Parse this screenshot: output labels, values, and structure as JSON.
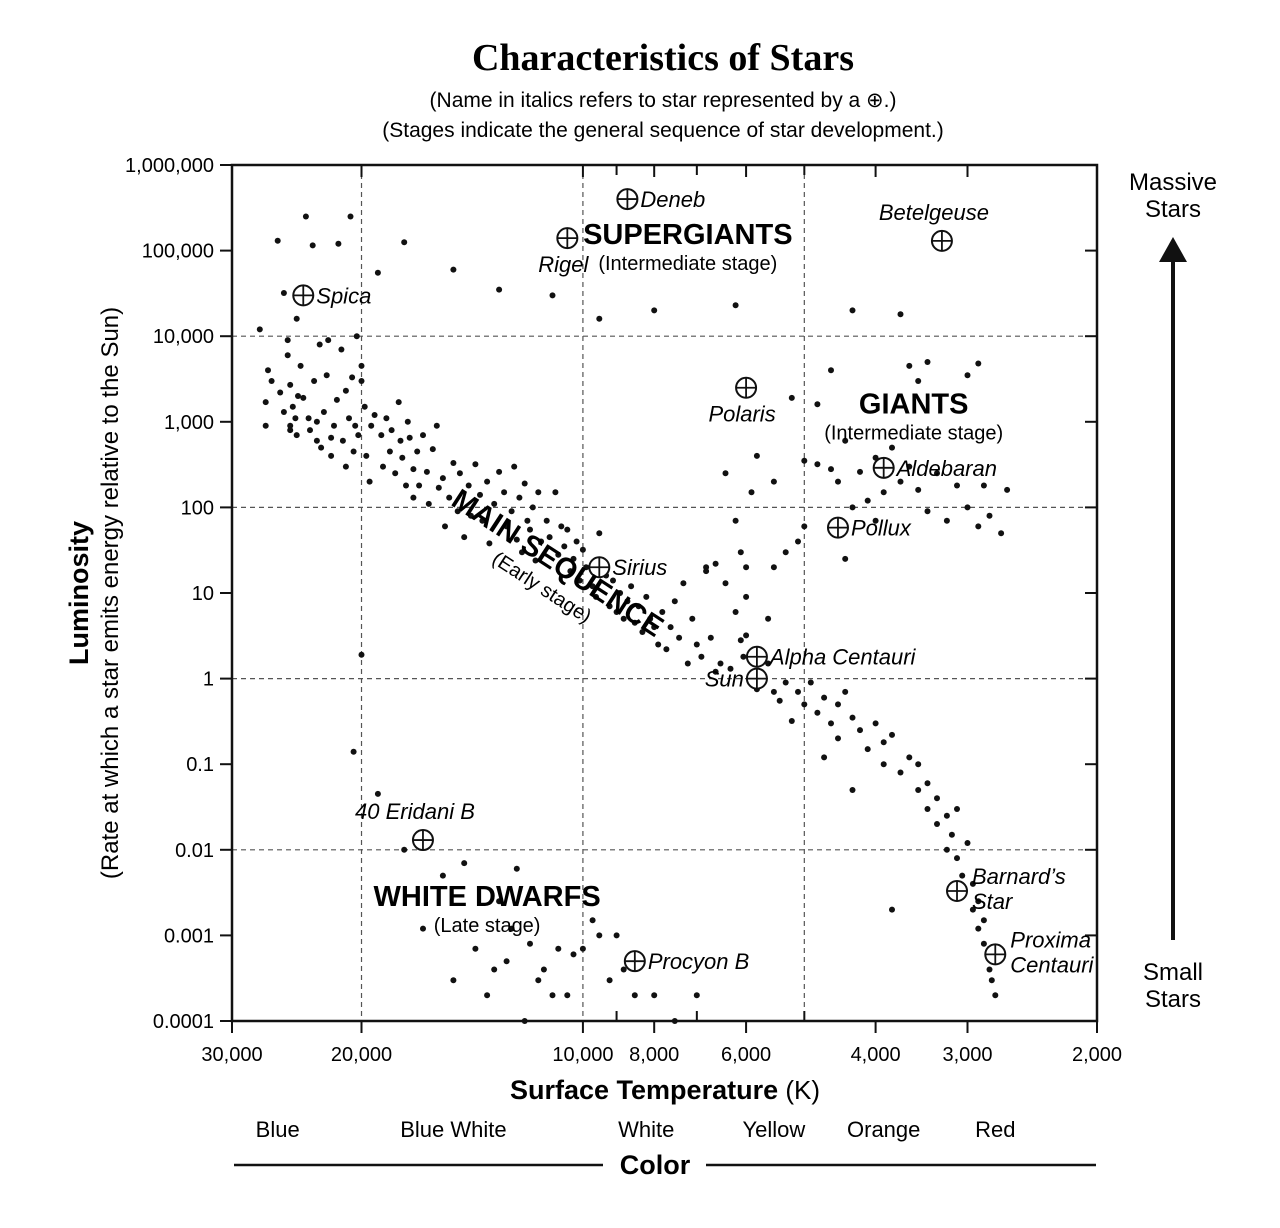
{
  "chart_data": {
    "type": "scatter",
    "title": "Characteristics of Stars",
    "subtitle_lines": [
      "(Name in italics refers to star represented by a ⊕.)",
      "(Stages indicate the general sequence of star development.)"
    ],
    "xlabel_bold": "Surface Temperature",
    "xlabel_unit": " (K)",
    "ylabel_main": "Luminosity",
    "ylabel_sub": "(Rate at which a star emits energy relative to the Sun)",
    "x_scale": "log",
    "x_reversed": true,
    "xlim": [
      30000,
      2000
    ],
    "y_scale": "log",
    "ylim": [
      0.0001,
      1000000
    ],
    "x_ticks": [
      {
        "value": 30000,
        "label": "30,000"
      },
      {
        "value": 20000,
        "label": "20,000"
      },
      {
        "value": 10000,
        "label": "10,000"
      },
      {
        "value": 8000,
        "label": "8,000"
      },
      {
        "value": 6000,
        "label": "6,000"
      },
      {
        "value": 4000,
        "label": "4,000"
      },
      {
        "value": 3000,
        "label": "3,000"
      },
      {
        "value": 2000,
        "label": "2,000"
      }
    ],
    "x_minor_ticks": [
      9000,
      7000,
      5000
    ],
    "x_gridlines": [
      20000,
      10000,
      5000
    ],
    "y_ticks": [
      {
        "value": 1000000,
        "label": "1,000,000"
      },
      {
        "value": 100000,
        "label": "100,000"
      },
      {
        "value": 10000,
        "label": "10,000"
      },
      {
        "value": 1000,
        "label": "1,000"
      },
      {
        "value": 100,
        "label": "100"
      },
      {
        "value": 10,
        "label": "10"
      },
      {
        "value": 1,
        "label": "1"
      },
      {
        "value": 0.1,
        "label": "0.1"
      },
      {
        "value": 0.01,
        "label": "0.01"
      },
      {
        "value": 0.001,
        "label": "0.001"
      },
      {
        "value": 0.0001,
        "label": "0.0001"
      }
    ],
    "y_gridlines": [
      10000,
      100,
      1,
      0.01
    ],
    "regions": [
      {
        "name": "SUPERGIANTS",
        "stage": "(Intermediate stage)",
        "temp": 7200,
        "lum": 120000,
        "rotate": 0
      },
      {
        "name": "GIANTS",
        "stage": "(Intermediate stage)",
        "temp": 3550,
        "lum": 1250,
        "rotate": 0
      },
      {
        "name": "MAIN SEQUENCE",
        "stage": "(Early stage)",
        "temp": 11000,
        "lum": 18,
        "rotate": 33
      },
      {
        "name": "WHITE DWARFS",
        "stage": "(Late stage)",
        "temp": 13500,
        "lum": 0.0022,
        "rotate": 0
      }
    ],
    "named_stars": [
      {
        "name": "Deneb",
        "temp": 8700,
        "lum": 400000,
        "label_pos": "right"
      },
      {
        "name": "Rigel",
        "temp": 10500,
        "lum": 140000,
        "label_pos": "below"
      },
      {
        "name": "Betelgeuse",
        "temp": 3250,
        "lum": 130000,
        "label_pos": "above"
      },
      {
        "name": "Spica",
        "temp": 24000,
        "lum": 30000,
        "label_pos": "right"
      },
      {
        "name": "Polaris",
        "temp": 6000,
        "lum": 2500,
        "label_pos": "below"
      },
      {
        "name": "Aldebaran",
        "temp": 3900,
        "lum": 290,
        "label_pos": "right"
      },
      {
        "name": "Pollux",
        "temp": 4500,
        "lum": 58,
        "label_pos": "right"
      },
      {
        "name": "Sirius",
        "temp": 9500,
        "lum": 20,
        "label_pos": "right"
      },
      {
        "name": "Alpha Centauri",
        "temp": 5800,
        "lum": 1.8,
        "label_pos": "right"
      },
      {
        "name": "Sun",
        "temp": 5800,
        "lum": 1.0,
        "label_pos": "left"
      },
      {
        "name": "40 Eridani B",
        "temp": 16500,
        "lum": 0.013,
        "label_pos": "above"
      },
      {
        "name": "Procyon B",
        "temp": 8500,
        "lum": 0.0005,
        "label_pos": "right"
      },
      {
        "name": "Barnard's Star",
        "temp": 3100,
        "lum": 0.0033,
        "label_pos": "right-two-line",
        "label_lines": [
          "Barnard’s",
          "Star"
        ]
      },
      {
        "name": "Proxima Centauri",
        "temp": 2750,
        "lum": 0.0006,
        "label_pos": "right-two-line",
        "label_lines": [
          "Proxima",
          "Centauri"
        ]
      }
    ],
    "points": [
      [
        27500,
        12000
      ],
      [
        27000,
        900
      ],
      [
        27000,
        1700
      ],
      [
        26800,
        4000
      ],
      [
        26500,
        3000
      ],
      [
        26000,
        130000
      ],
      [
        25800,
        2200
      ],
      [
        25500,
        32000
      ],
      [
        25500,
        1300
      ],
      [
        25200,
        9000
      ],
      [
        25200,
        6000
      ],
      [
        25000,
        900
      ],
      [
        25000,
        2700
      ],
      [
        25000,
        800
      ],
      [
        24800,
        1500
      ],
      [
        24600,
        1100
      ],
      [
        24500,
        16000
      ],
      [
        24500,
        700
      ],
      [
        24400,
        2000
      ],
      [
        24200,
        4500
      ],
      [
        24000,
        1900
      ],
      [
        23800,
        250000
      ],
      [
        23600,
        1100
      ],
      [
        23500,
        800
      ],
      [
        23300,
        115000
      ],
      [
        23200,
        3000
      ],
      [
        23000,
        600
      ],
      [
        23000,
        1000
      ],
      [
        22800,
        8000
      ],
      [
        22700,
        500
      ],
      [
        22500,
        1300
      ],
      [
        22300,
        3500
      ],
      [
        22200,
        9000
      ],
      [
        22000,
        650
      ],
      [
        22000,
        400
      ],
      [
        21800,
        900
      ],
      [
        21600,
        1800
      ],
      [
        21500,
        120000
      ],
      [
        21300,
        7000
      ],
      [
        21200,
        600
      ],
      [
        21000,
        2300
      ],
      [
        21000,
        300
      ],
      [
        20800,
        1100
      ],
      [
        20700,
        250000
      ],
      [
        20600,
        3300
      ],
      [
        20500,
        450
      ],
      [
        20400,
        900
      ],
      [
        20300,
        10000
      ],
      [
        20200,
        700
      ],
      [
        20000,
        3000
      ],
      [
        20000,
        4500
      ],
      [
        19800,
        1500
      ],
      [
        19700,
        400
      ],
      [
        19500,
        200
      ],
      [
        19400,
        900
      ],
      [
        19200,
        1200
      ],
      [
        19000,
        55000
      ],
      [
        18800,
        700
      ],
      [
        18700,
        300
      ],
      [
        18500,
        1100
      ],
      [
        18300,
        450
      ],
      [
        18200,
        800
      ],
      [
        18000,
        250
      ],
      [
        17800,
        1700
      ],
      [
        17700,
        600
      ],
      [
        17600,
        380
      ],
      [
        17500,
        125000
      ],
      [
        17400,
        180
      ],
      [
        17300,
        1000
      ],
      [
        17200,
        650
      ],
      [
        17000,
        280
      ],
      [
        17000,
        130
      ],
      [
        16800,
        450
      ],
      [
        16700,
        180
      ],
      [
        16500,
        700
      ],
      [
        16300,
        260
      ],
      [
        16200,
        110
      ],
      [
        16000,
        480
      ],
      [
        15800,
        900
      ],
      [
        15700,
        170
      ],
      [
        15500,
        220
      ],
      [
        15400,
        60
      ],
      [
        15200,
        130
      ],
      [
        15000,
        330
      ],
      [
        15000,
        60000
      ],
      [
        14800,
        90
      ],
      [
        14700,
        250
      ],
      [
        14500,
        45
      ],
      [
        14300,
        180
      ],
      [
        14200,
        80
      ],
      [
        14000,
        320
      ],
      [
        13800,
        140
      ],
      [
        13700,
        70
      ],
      [
        13500,
        200
      ],
      [
        13400,
        38
      ],
      [
        13200,
        110
      ],
      [
        13000,
        260
      ],
      [
        13000,
        35000
      ],
      [
        12800,
        150
      ],
      [
        12700,
        60
      ],
      [
        12500,
        90
      ],
      [
        12400,
        300
      ],
      [
        12300,
        42
      ],
      [
        12200,
        130
      ],
      [
        12100,
        30
      ],
      [
        12000,
        190
      ],
      [
        11900,
        70
      ],
      [
        11800,
        55
      ],
      [
        11700,
        100
      ],
      [
        11600,
        24
      ],
      [
        11500,
        150
      ],
      [
        11400,
        40
      ],
      [
        11200,
        70
      ],
      [
        11100,
        45
      ],
      [
        11000,
        30000
      ],
      [
        10900,
        150
      ],
      [
        10800,
        28
      ],
      [
        10700,
        60
      ],
      [
        10600,
        35
      ],
      [
        10500,
        55
      ],
      [
        10400,
        18
      ],
      [
        10300,
        25
      ],
      [
        10200,
        40
      ],
      [
        10100,
        14
      ],
      [
        10000,
        32
      ],
      [
        9900,
        20
      ],
      [
        9700,
        12
      ],
      [
        9600,
        9
      ],
      [
        9500,
        50
      ],
      [
        9500,
        16000
      ],
      [
        9300,
        16
      ],
      [
        9200,
        7
      ],
      [
        9100,
        14
      ],
      [
        9000,
        6
      ],
      [
        8900,
        10
      ],
      [
        8800,
        5
      ],
      [
        8700,
        8
      ],
      [
        8600,
        12
      ],
      [
        8500,
        4.5
      ],
      [
        8400,
        7
      ],
      [
        8300,
        3.5
      ],
      [
        8200,
        9
      ],
      [
        8100,
        5
      ],
      [
        8000,
        20000
      ],
      [
        8000,
        4
      ],
      [
        7900,
        2.5
      ],
      [
        7800,
        6
      ],
      [
        7700,
        2.2
      ],
      [
        7600,
        4
      ],
      [
        7500,
        8
      ],
      [
        7400,
        3
      ],
      [
        7300,
        13
      ],
      [
        7200,
        1.5
      ],
      [
        7100,
        5
      ],
      [
        7000,
        2.5
      ],
      [
        6900,
        1.8
      ],
      [
        6800,
        20
      ],
      [
        6700,
        3
      ],
      [
        6600,
        1.2
      ],
      [
        6500,
        1.5
      ],
      [
        6400,
        13
      ],
      [
        6300,
        1.3
      ],
      [
        6200,
        23000
      ],
      [
        6200,
        6
      ],
      [
        6100,
        2.8
      ],
      [
        6000,
        20
      ],
      [
        6000,
        3.2
      ],
      [
        6000,
        9
      ],
      [
        5900,
        1.6
      ],
      [
        5900,
        150
      ],
      [
        5800,
        400
      ],
      [
        5600,
        5
      ],
      [
        5500,
        0.7
      ],
      [
        5500,
        20
      ],
      [
        5400,
        0.55
      ],
      [
        5300,
        0.9
      ],
      [
        5200,
        0.32
      ],
      [
        5200,
        1900
      ],
      [
        5100,
        0.7
      ],
      [
        5100,
        40
      ],
      [
        5000,
        0.5
      ],
      [
        5000,
        60
      ],
      [
        4900,
        0.9
      ],
      [
        4800,
        0.4
      ],
      [
        4800,
        1600
      ],
      [
        4700,
        0.6
      ],
      [
        4700,
        0.12
      ],
      [
        4600,
        0.3
      ],
      [
        4600,
        4000
      ],
      [
        4500,
        0.5
      ],
      [
        4500,
        0.2
      ],
      [
        4400,
        0.7
      ],
      [
        4400,
        25
      ],
      [
        4300,
        0.35
      ],
      [
        4300,
        0.05
      ],
      [
        4300,
        20000
      ],
      [
        4200,
        0.25
      ],
      [
        4100,
        0.15
      ],
      [
        4000,
        0.3
      ],
      [
        3900,
        0.18
      ],
      [
        3900,
        0.1
      ],
      [
        3800,
        0.22
      ],
      [
        3800,
        0.002
      ],
      [
        3700,
        0.08
      ],
      [
        3700,
        18000
      ],
      [
        3600,
        0.12
      ],
      [
        3500,
        0.05
      ],
      [
        3500,
        0.1
      ],
      [
        3400,
        0.03
      ],
      [
        3400,
        0.06
      ],
      [
        3300,
        0.02
      ],
      [
        3300,
        0.04
      ],
      [
        3200,
        0.01
      ],
      [
        3200,
        0.025
      ],
      [
        3150,
        0.015
      ],
      [
        3100,
        0.008
      ],
      [
        3100,
        0.03
      ],
      [
        3050,
        0.005
      ],
      [
        3000,
        0.012
      ],
      [
        2950,
        0.002
      ],
      [
        2950,
        0.004
      ],
      [
        2900,
        0.0012
      ],
      [
        2900,
        0.0025
      ],
      [
        2850,
        0.0008
      ],
      [
        2850,
        0.0015
      ],
      [
        2800,
        0.0004
      ],
      [
        2800,
        0.0007
      ],
      [
        2780,
        0.0003
      ],
      [
        2750,
        0.0002
      ],
      [
        17500,
        0.01
      ],
      [
        16500,
        0.0012
      ],
      [
        15500,
        0.005
      ],
      [
        15000,
        0.0003
      ],
      [
        14500,
        0.007
      ],
      [
        14000,
        0.0007
      ],
      [
        13500,
        0.0002
      ],
      [
        13200,
        0.0004
      ],
      [
        13000,
        0.0025
      ],
      [
        12700,
        0.0005
      ],
      [
        12500,
        0.0012
      ],
      [
        12300,
        0.006
      ],
      [
        12000,
        0.0001
      ],
      [
        11800,
        0.0008
      ],
      [
        11500,
        0.0003
      ],
      [
        11300,
        0.0004
      ],
      [
        11000,
        0.0002
      ],
      [
        10800,
        0.0007
      ],
      [
        10500,
        0.0002
      ],
      [
        10300,
        0.0006
      ],
      [
        10000,
        0.0007
      ],
      [
        9700,
        0.0015
      ],
      [
        9500,
        0.001
      ],
      [
        9200,
        0.0003
      ],
      [
        9000,
        0.001
      ],
      [
        8800,
        0.0004
      ],
      [
        8500,
        0.0002
      ],
      [
        8000,
        0.0002
      ],
      [
        7500,
        0.0001
      ],
      [
        7000,
        0.0002
      ],
      [
        20000,
        1.9
      ],
      [
        20500,
        0.14
      ],
      [
        19000,
        0.045
      ],
      [
        6800,
        18
      ],
      [
        6600,
        22
      ],
      [
        6400,
        250
      ],
      [
        6200,
        70
      ],
      [
        6100,
        30
      ],
      [
        6050,
        1.8
      ],
      [
        5800,
        0.75
      ],
      [
        5600,
        1.5
      ],
      [
        5500,
        200
      ],
      [
        5300,
        30
      ],
      [
        5000,
        350
      ],
      [
        4800,
        320
      ],
      [
        4600,
        280
      ],
      [
        4500,
        200
      ],
      [
        4400,
        600
      ],
      [
        4300,
        100
      ],
      [
        4200,
        260
      ],
      [
        4100,
        120
      ],
      [
        4000,
        70
      ],
      [
        4000,
        380
      ],
      [
        3900,
        150
      ],
      [
        3800,
        500
      ],
      [
        3700,
        200
      ],
      [
        3600,
        300
      ],
      [
        3500,
        160
      ],
      [
        3400,
        90
      ],
      [
        3300,
        250
      ],
      [
        3200,
        70
      ],
      [
        3100,
        180
      ],
      [
        3000,
        100
      ],
      [
        2900,
        60
      ],
      [
        2850,
        180
      ],
      [
        2800,
        80
      ],
      [
        2700,
        50
      ],
      [
        2650,
        160
      ],
      [
        3600,
        4500
      ],
      [
        3500,
        3000
      ],
      [
        3400,
        5000
      ],
      [
        2900,
        4800
      ],
      [
        3000,
        3500
      ]
    ]
  },
  "side_notes": {
    "top_line1": "Massive",
    "top_line2": "Stars",
    "bottom_line1": "Small",
    "bottom_line2": "Stars"
  },
  "color_band": {
    "title": "Color",
    "labels": [
      {
        "text": "Blue",
        "temp": 26000
      },
      {
        "text": "Blue White",
        "temp": 15000
      },
      {
        "text": "White",
        "temp": 8200
      },
      {
        "text": "Yellow",
        "temp": 5500
      },
      {
        "text": "Orange",
        "temp": 3900
      },
      {
        "text": "Red",
        "temp": 2750
      }
    ]
  },
  "colors": {
    "ink": "#111111",
    "grid": "#555555",
    "background": "#ffffff"
  }
}
